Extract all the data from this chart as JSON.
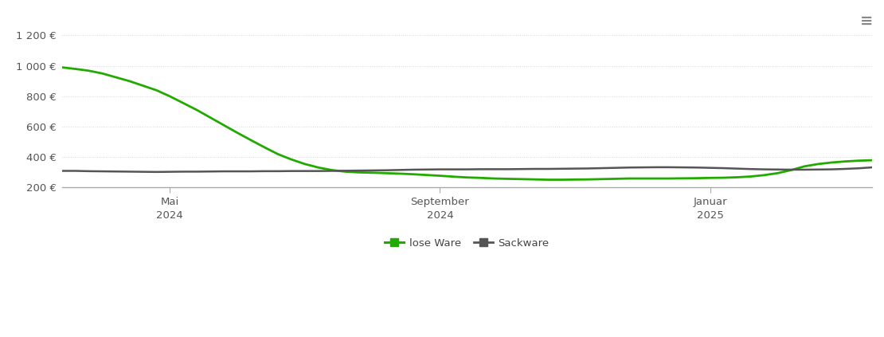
{
  "background_color": "#ffffff",
  "grid_color": "#d8d8d8",
  "ylim": [
    200,
    1300
  ],
  "yticks": [
    200,
    400,
    600,
    800,
    1000,
    1200
  ],
  "ytick_labels": [
    "200 €",
    "400 €",
    "600 €",
    "800 €",
    "1 000 €",
    "1 200 €"
  ],
  "legend_labels": [
    "lose Ware",
    "Sackware"
  ],
  "legend_colors": [
    "#22aa00",
    "#555555"
  ],
  "lose_ware_x": [
    0,
    1,
    2,
    3,
    4,
    5,
    6,
    7,
    8,
    9,
    10,
    11,
    12,
    13,
    14,
    15,
    16,
    17,
    18,
    19,
    20,
    21,
    22,
    23,
    24,
    25,
    26,
    27,
    28,
    29,
    30,
    31,
    32,
    33,
    34,
    35,
    36,
    37,
    38,
    39,
    40,
    41,
    42,
    43,
    44,
    45,
    46,
    47,
    48,
    49,
    50,
    51,
    52,
    53,
    54,
    55,
    56,
    57,
    58,
    59,
    60
  ],
  "lose_ware": [
    990,
    980,
    968,
    950,
    925,
    900,
    870,
    840,
    800,
    755,
    710,
    660,
    610,
    560,
    512,
    465,
    420,
    385,
    355,
    332,
    315,
    305,
    300,
    298,
    295,
    292,
    288,
    283,
    278,
    272,
    267,
    264,
    260,
    258,
    256,
    254,
    252,
    252,
    253,
    254,
    256,
    258,
    260,
    260,
    260,
    260,
    261,
    262,
    264,
    265,
    268,
    273,
    282,
    295,
    315,
    340,
    355,
    365,
    372,
    377,
    380
  ],
  "sackware_x": [
    0,
    1,
    2,
    3,
    4,
    5,
    6,
    7,
    8,
    9,
    10,
    11,
    12,
    13,
    14,
    15,
    16,
    17,
    18,
    19,
    20,
    21,
    22,
    23,
    24,
    25,
    26,
    27,
    28,
    29,
    30,
    31,
    32,
    33,
    34,
    35,
    36,
    37,
    38,
    39,
    40,
    41,
    42,
    43,
    44,
    45,
    46,
    47,
    48,
    49,
    50,
    51,
    52,
    53,
    54,
    55,
    56,
    57,
    58,
    59,
    60
  ],
  "sackware": [
    310,
    310,
    308,
    307,
    306,
    305,
    304,
    303,
    304,
    305,
    305,
    306,
    307,
    307,
    307,
    308,
    308,
    309,
    309,
    309,
    310,
    311,
    312,
    313,
    314,
    316,
    318,
    319,
    320,
    320,
    320,
    321,
    321,
    321,
    322,
    323,
    323,
    324,
    325,
    326,
    328,
    330,
    332,
    333,
    334,
    334,
    333,
    332,
    330,
    328,
    325,
    322,
    320,
    319,
    318,
    318,
    319,
    320,
    323,
    327,
    333
  ],
  "xtick_positions": [
    8,
    28,
    48
  ],
  "xtick_labels": [
    "Mai\n2024",
    "September\n2024",
    "Januar\n2025"
  ],
  "xlim": [
    0,
    60
  ]
}
